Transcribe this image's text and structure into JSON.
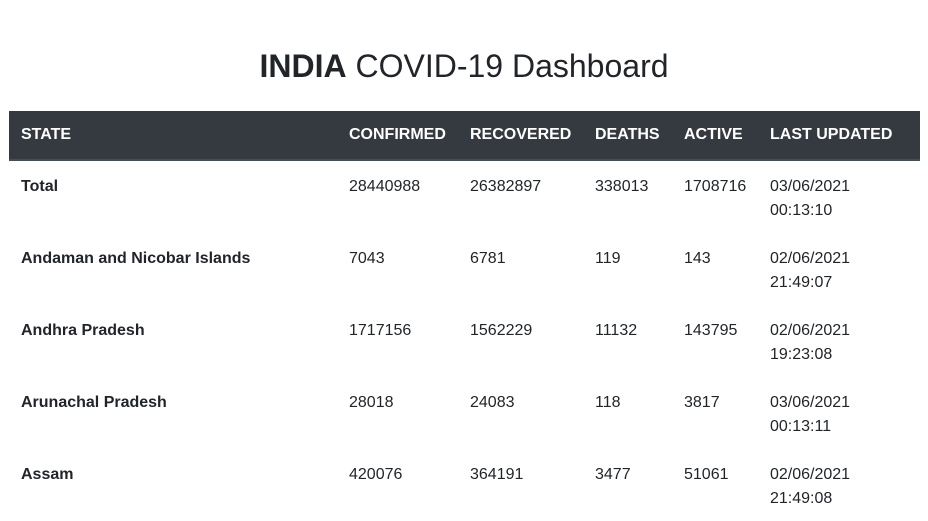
{
  "page": {
    "title_bold": "INDIA",
    "title_rest": "COVID-19 Dashboard"
  },
  "table": {
    "headers": {
      "state": "STATE",
      "confirmed": "CONFIRMED",
      "recovered": "RECOVERED",
      "deaths": "DEATHS",
      "active": "ACTIVE",
      "last_updated": "LAST UPDATED"
    },
    "rows": [
      {
        "state": "Total",
        "confirmed": "28440988",
        "recovered": "26382897",
        "deaths": "338013",
        "active": "1708716",
        "date": "03/06/2021",
        "time": "00:13:10"
      },
      {
        "state": "Andaman and Nicobar Islands",
        "confirmed": "7043",
        "recovered": "6781",
        "deaths": "119",
        "active": "143",
        "date": "02/06/2021",
        "time": "21:49:07"
      },
      {
        "state": "Andhra Pradesh",
        "confirmed": "1717156",
        "recovered": "1562229",
        "deaths": "11132",
        "active": "143795",
        "date": "02/06/2021",
        "time": "19:23:08"
      },
      {
        "state": "Arunachal Pradesh",
        "confirmed": "28018",
        "recovered": "24083",
        "deaths": "118",
        "active": "3817",
        "date": "03/06/2021",
        "time": "00:13:11"
      },
      {
        "state": "Assam",
        "confirmed": "420076",
        "recovered": "364191",
        "deaths": "3477",
        "active": "51061",
        "date": "02/06/2021",
        "time": "21:49:08"
      }
    ]
  },
  "colors": {
    "header_bg": "#343a40",
    "header_text": "#ffffff",
    "body_text": "#212529"
  }
}
